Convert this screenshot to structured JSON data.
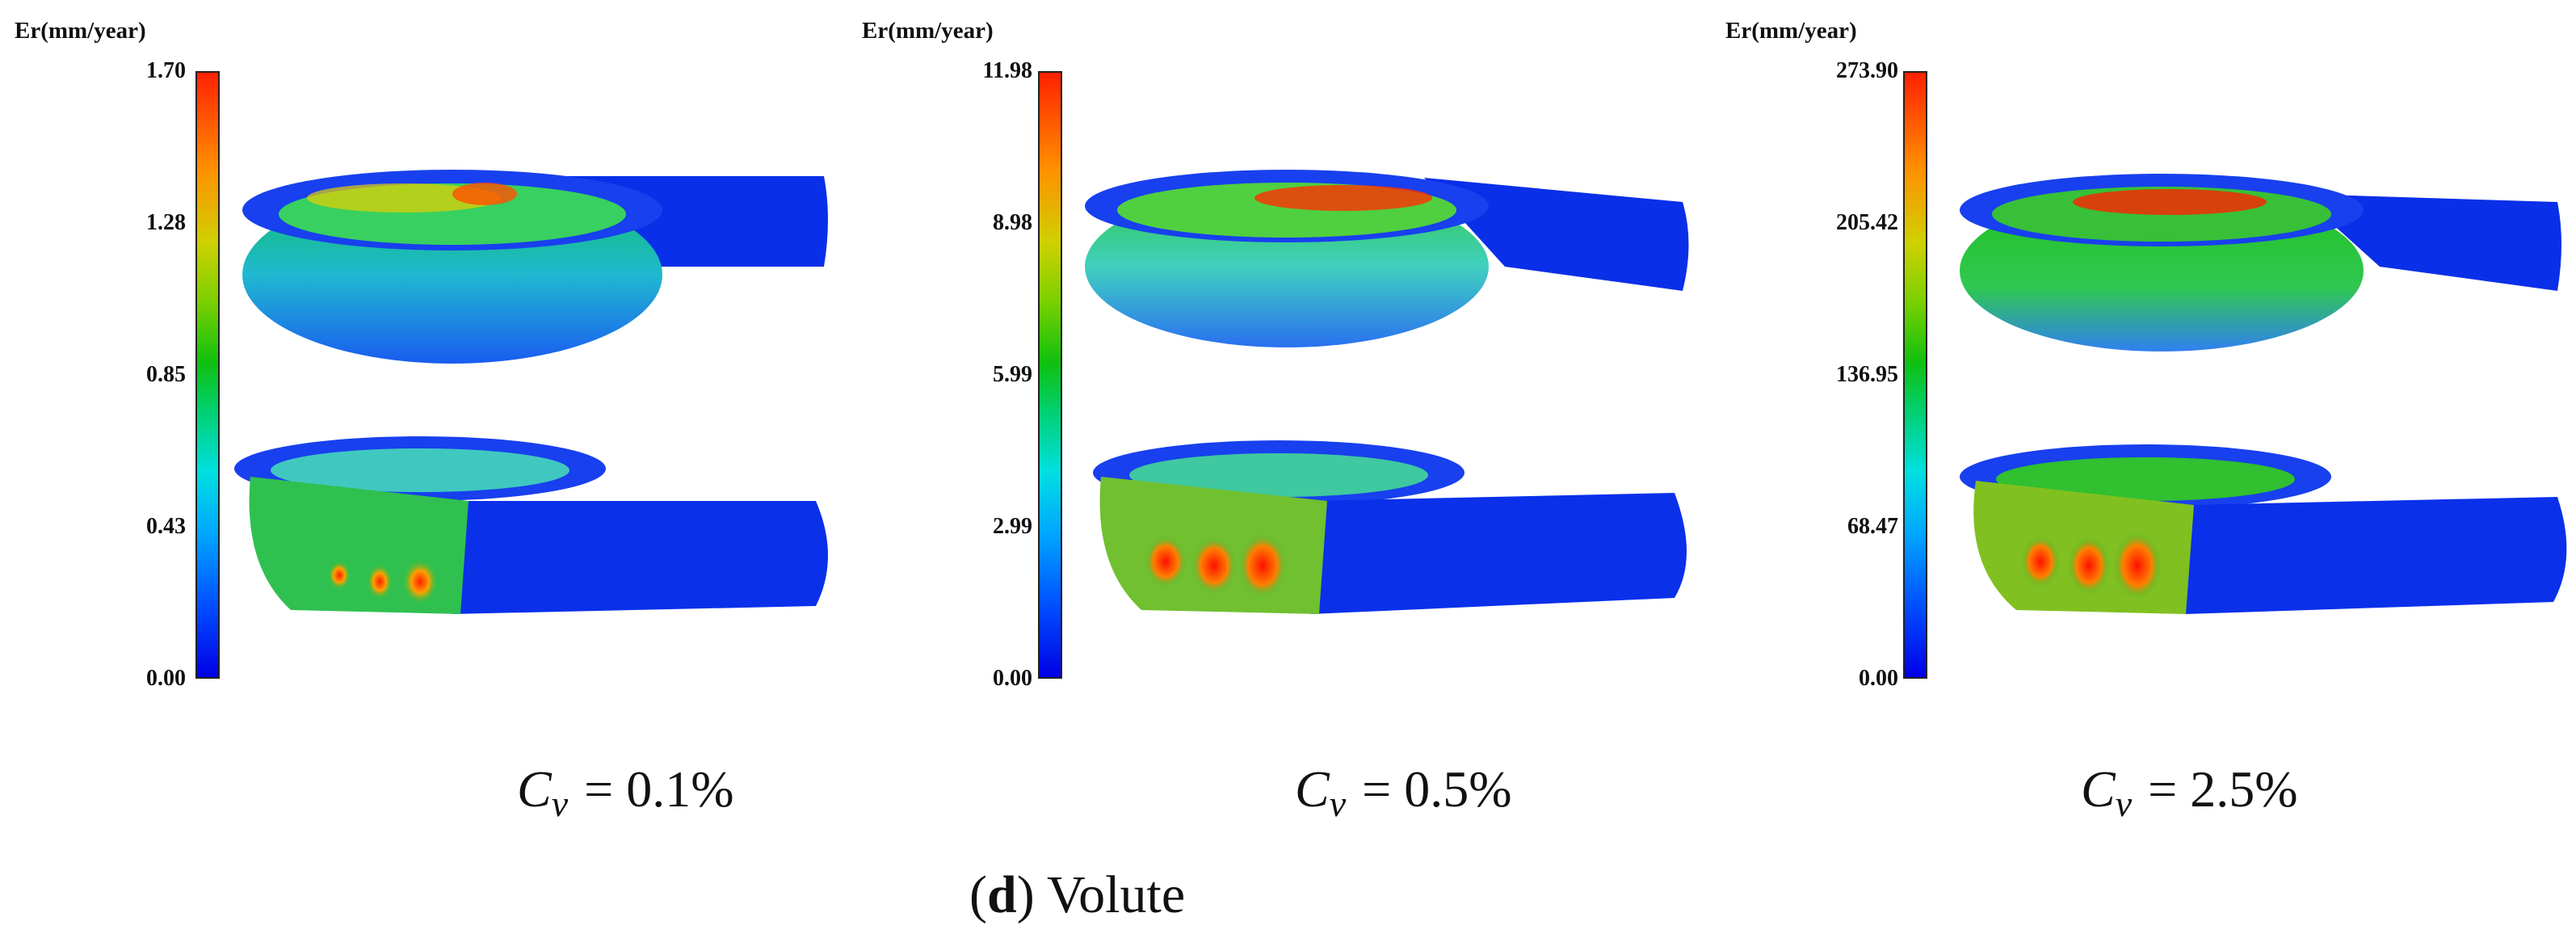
{
  "figure": {
    "caption_letter": "d",
    "caption_text": "Volute"
  },
  "panels": [
    {
      "unit_label": "Er(mm/year)",
      "ticks": [
        "1.70",
        "1.28",
        "0.85",
        "0.43",
        "0.00"
      ],
      "cv_symbol": "C",
      "cv_subscript": "v",
      "cv_value": "= 0.1%",
      "erosion_level": 0.25
    },
    {
      "unit_label": "Er(mm/year)",
      "ticks": [
        "11.98",
        "8.98",
        "5.99",
        "2.99",
        "0.00"
      ],
      "cv_symbol": "C",
      "cv_subscript": "v",
      "cv_value": "= 0.5%",
      "erosion_level": 0.55
    },
    {
      "unit_label": "Er(mm/year)",
      "ticks": [
        "273.90",
        "205.42",
        "136.95",
        "68.47",
        "0.00"
      ],
      "cv_symbol": "C",
      "cv_subscript": "v",
      "cv_value": "= 2.5%",
      "erosion_level": 0.8
    }
  ],
  "colors": {
    "low": "#0000e6",
    "mid": "#10c010",
    "high": "#ff2000"
  }
}
